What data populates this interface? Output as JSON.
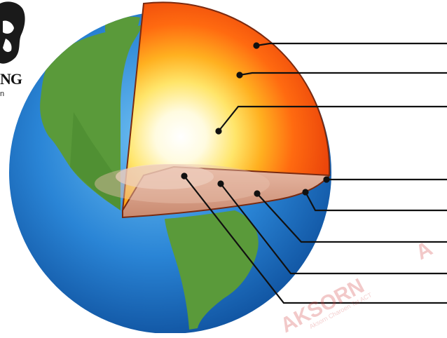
{
  "logo": {
    "text": "NG",
    "subtext": "n"
  },
  "watermark": {
    "brand": "AKSORN",
    "tagline": "Aksorn Charoen Tat ACT",
    "partial": "A"
  },
  "diagram": {
    "subject": "earth-layers-cutaway",
    "layers": [
      "crust",
      "mantle",
      "outer-core",
      "inner-core"
    ],
    "label_pointer_count": 9,
    "colors": {
      "ocean": "#2a7fd0",
      "land": "#5a9a3a",
      "crust_edge": "#8a4a2a",
      "mantle": "#ff6a10",
      "outer_core": "#ffcc30",
      "inner_core": "#fffbe8",
      "cut_surface": "#d9a088",
      "leader": "#111111"
    }
  }
}
